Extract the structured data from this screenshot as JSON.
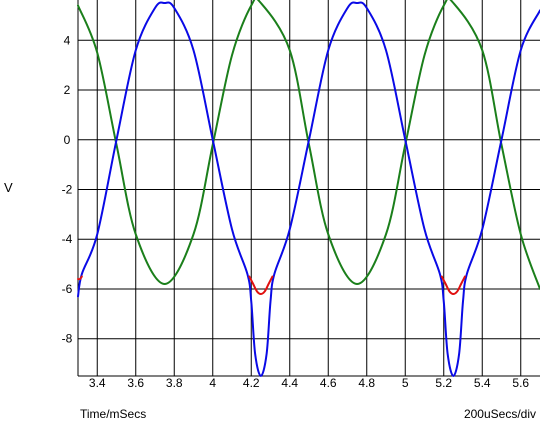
{
  "chart_data": {
    "type": "line",
    "title": "",
    "ylabel": "V",
    "xlabel": "Time/mSecs",
    "x_scale_note": "200uSecs/div",
    "xlim": [
      3.3,
      5.7
    ],
    "ylim": [
      -9.5,
      5.5
    ],
    "x_ticks": [
      3.4,
      3.6,
      3.8,
      4.0,
      4.2,
      4.4,
      4.6,
      4.8,
      5.0,
      5.2,
      5.4,
      5.6
    ],
    "x_tick_labels": [
      "3.4",
      "3.6",
      "3.8",
      "4",
      "4.2",
      "4.4",
      "4.6",
      "4.8",
      "5",
      "5.2",
      "5.4",
      "5.6"
    ],
    "y_ticks": [
      4,
      2,
      0,
      -2,
      -4,
      -6,
      -8
    ],
    "y_tick_labels": [
      "4",
      "2",
      "0",
      "-2",
      "-4",
      "-6",
      "-8"
    ],
    "grid": true,
    "colors": {
      "green": "#1b7f1b",
      "blue": "#0a0ae6",
      "red": "#e01010",
      "grid": "#000000"
    },
    "series": [
      {
        "color": "#1b7f1b",
        "x": [
          3.3,
          3.4,
          3.5,
          3.6,
          3.75,
          3.9,
          4.0,
          4.1,
          4.2,
          4.25,
          4.4,
          4.5,
          4.6,
          4.75,
          4.9,
          5.0,
          5.1,
          5.2,
          5.25,
          5.4,
          5.5,
          5.6,
          5.7
        ],
        "y": [
          5.4,
          3.5,
          -0.2,
          -3.8,
          -5.8,
          -3.8,
          -0.2,
          3.4,
          5.4,
          5.5,
          3.6,
          -0.2,
          -3.8,
          -5.8,
          -3.8,
          -0.2,
          3.4,
          5.4,
          5.5,
          3.6,
          -0.2,
          -3.8,
          -6.0
        ]
      },
      {
        "color": "#0a0ae6",
        "x": [
          3.3,
          3.32,
          3.4,
          3.5,
          3.6,
          3.7,
          3.75,
          3.8,
          3.9,
          4.0,
          4.1,
          4.18,
          4.2,
          4.22,
          4.25,
          4.28,
          4.3,
          4.32,
          4.4,
          4.5,
          4.6,
          4.7,
          4.75,
          4.8,
          4.9,
          5.0,
          5.1,
          5.18,
          5.2,
          5.22,
          5.25,
          5.28,
          5.3,
          5.32,
          5.4,
          5.5,
          5.6,
          5.7
        ],
        "y": [
          -6.3,
          -5.4,
          -3.8,
          0.0,
          3.6,
          5.3,
          5.5,
          5.3,
          3.6,
          0.0,
          -3.6,
          -5.4,
          -6.5,
          -8.6,
          -9.5,
          -8.6,
          -6.5,
          -5.4,
          -3.6,
          0.0,
          3.6,
          5.3,
          5.5,
          5.3,
          3.6,
          0.0,
          -3.6,
          -5.4,
          -6.5,
          -8.6,
          -9.5,
          -8.6,
          -6.5,
          -5.4,
          -3.6,
          0.0,
          3.6,
          5.2
        ]
      },
      {
        "color": "#e01010",
        "segments": [
          {
            "x": [
              3.3,
              3.31,
              3.32
            ],
            "y": [
              -5.6,
              -5.6,
              -5.5
            ]
          },
          {
            "x": [
              4.19,
              4.21,
              4.23,
              4.25,
              4.27,
              4.29,
              4.31
            ],
            "y": [
              -5.5,
              -5.8,
              -6.1,
              -6.2,
              -6.1,
              -5.8,
              -5.5
            ]
          },
          {
            "x": [
              5.19,
              5.21,
              5.23,
              5.25,
              5.27,
              5.29,
              5.31
            ],
            "y": [
              -5.5,
              -5.8,
              -6.1,
              -6.2,
              -6.1,
              -5.8,
              -5.5
            ]
          }
        ]
      }
    ]
  }
}
